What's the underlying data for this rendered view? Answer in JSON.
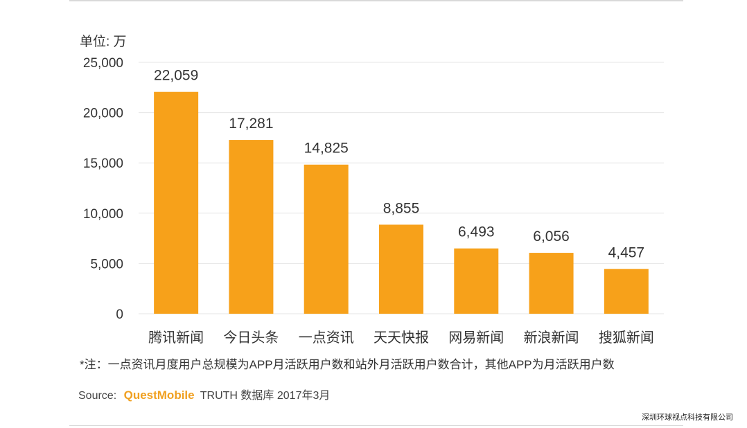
{
  "unit_label": "单位: 万",
  "note": "*注：一点资讯月度用户总规模为APP月活跃用户数和站外月活跃用户数合计，其他APP为月活跃用户数",
  "source": {
    "prefix": "Source:",
    "brand": "QuestMobile",
    "rest": "TRUTH 数据库 2017年3月"
  },
  "watermark": "深圳环球视点科技有限公司",
  "colors": {
    "bar": "#f7a11a",
    "grid": "#e6e6e6",
    "text": "#333333"
  },
  "chart_data": {
    "type": "bar",
    "categories": [
      "腾讯新闻",
      "今日头条",
      "一点资讯",
      "天天快报",
      "网易新闻",
      "新浪新闻",
      "搜狐新闻"
    ],
    "values": [
      22059,
      17281,
      14825,
      8855,
      6493,
      6056,
      4457
    ],
    "value_labels": [
      "22,059",
      "17,281",
      "14,825",
      "8,855",
      "6,493",
      "6,056",
      "4,457"
    ],
    "yticks": [
      0,
      5000,
      10000,
      15000,
      20000,
      25000
    ],
    "ytick_labels": [
      "0",
      "5,000",
      "10,000",
      "15,000",
      "20,000",
      "25,000"
    ],
    "ylim": [
      0,
      25000
    ],
    "grid": true,
    "legend": "none"
  }
}
